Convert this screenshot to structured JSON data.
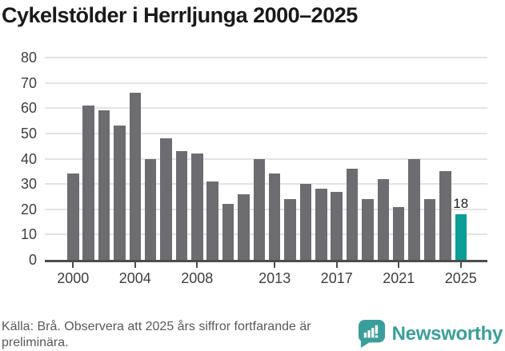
{
  "title": "Cykelstölder i Herrljunga 2000–2025",
  "chart_data": {
    "type": "bar",
    "categories": [
      "2000",
      "2001",
      "2002",
      "2003",
      "2004",
      "2005",
      "2006",
      "2007",
      "2008",
      "2009",
      "2010",
      "2011",
      "2012",
      "2013",
      "2014",
      "2015",
      "2016",
      "2017",
      "2018",
      "2019",
      "2020",
      "2021",
      "2022",
      "2023",
      "2024",
      "2025"
    ],
    "values": [
      34,
      61,
      59,
      53,
      66,
      40,
      48,
      43,
      42,
      31,
      22,
      26,
      40,
      34,
      24,
      30,
      28,
      27,
      36,
      24,
      32,
      21,
      40,
      24,
      35,
      18
    ],
    "title": "Cykelstölder i Herrljunga 2000–2025",
    "xlabel": "",
    "ylabel": "",
    "ylim": [
      0,
      80
    ],
    "yticks": [
      0,
      10,
      20,
      30,
      40,
      50,
      60,
      70,
      80
    ],
    "xtick_labels": [
      "2000",
      "2004",
      "2008",
      "2013",
      "2017",
      "2021",
      "2025"
    ],
    "xtick_indices": [
      0,
      4,
      8,
      13,
      17,
      21,
      25
    ],
    "grid": true,
    "legend": "none",
    "bar_color": "#6d6d71",
    "highlight_index": 25,
    "highlight_color": "#0a9e96",
    "highlight_value_label": "18"
  },
  "footer": {
    "lines": [
      "Källa: Brå. Observera att 2025 års siffror fortfarande är",
      "preliminära."
    ],
    "brand": "Newsworthy",
    "brand_color": "#3a9e9c"
  }
}
